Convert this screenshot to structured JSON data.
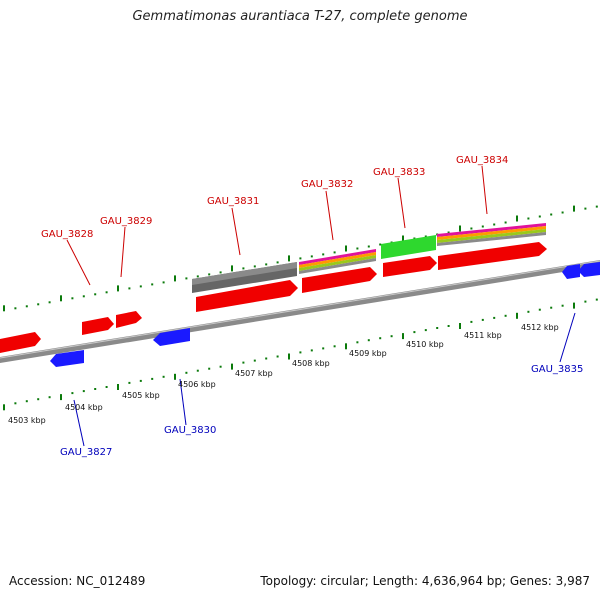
{
  "title": "Gemmatimonas aurantiaca T-27, complete genome",
  "footer": {
    "accession": "Accession: NC_012489",
    "summary": "Topology: circular; Length: 4,636,964 bp; Genes: 3,987"
  },
  "colors": {
    "forward_cds": "#ff0000",
    "reverse_cds": "#1a1aff",
    "forward_label": "#cc0000",
    "reverse_label": "#0000bb",
    "backbone": "#8a8a8a",
    "ticks": "#0b7a0b"
  },
  "ruler_labels": [
    "4503 kbp",
    "4504 kbp",
    "4505 kbp",
    "4506 kbp",
    "4507 kbp",
    "4508 kbp",
    "4509 kbp",
    "4510 kbp",
    "4511 kbp",
    "4512 kbp"
  ],
  "genes": [
    {
      "id": "GAU_3827",
      "strand": "reverse"
    },
    {
      "id": "GAU_3828",
      "strand": "forward"
    },
    {
      "id": "GAU_3829",
      "strand": "forward"
    },
    {
      "id": "GAU_3830",
      "strand": "reverse"
    },
    {
      "id": "GAU_3831",
      "strand": "forward"
    },
    {
      "id": "GAU_3832",
      "strand": "forward"
    },
    {
      "id": "GAU_3833",
      "strand": "forward"
    },
    {
      "id": "GAU_3834",
      "strand": "forward"
    },
    {
      "id": "GAU_3835",
      "strand": "reverse"
    }
  ]
}
